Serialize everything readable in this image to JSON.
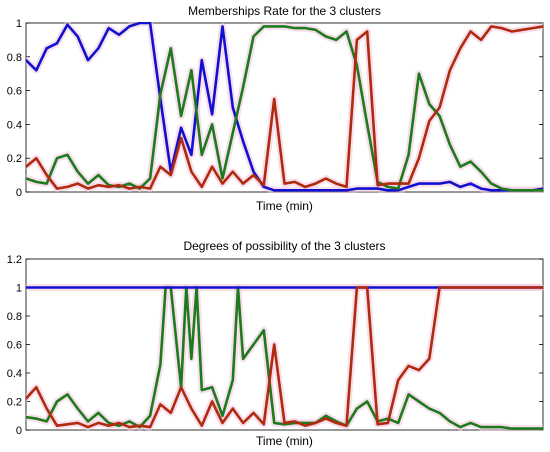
{
  "chart_data": [
    {
      "type": "line",
      "title": "Memberships Rate for the 3 clusters",
      "xlabel": "Time (min)",
      "ylabel": "",
      "ylim": [
        0,
        1
      ],
      "yticks": [
        "0",
        "0.2",
        "0.4",
        "0.6",
        "0.8",
        "1"
      ],
      "xlim": [
        0,
        100
      ],
      "grid": false,
      "legend": "none",
      "series": [
        {
          "color": "#1010d0",
          "x": [
            0,
            2,
            4,
            6,
            8,
            10,
            12,
            14,
            16,
            18,
            20,
            22,
            24,
            26,
            28,
            30,
            32,
            34,
            36,
            38,
            40,
            42,
            44,
            46,
            48,
            50,
            52,
            54,
            56,
            58,
            60,
            62,
            64,
            66,
            68,
            70,
            72,
            74,
            76,
            78,
            80,
            82,
            84,
            86,
            88,
            90,
            92,
            94,
            96,
            98,
            100
          ],
          "y": [
            0.78,
            0.72,
            0.85,
            0.88,
            0.99,
            0.92,
            0.78,
            0.85,
            0.97,
            0.93,
            0.98,
            1.0,
            1.0,
            0.55,
            0.12,
            0.38,
            0.22,
            0.78,
            0.46,
            0.98,
            0.5,
            0.3,
            0.12,
            0.03,
            0.01,
            0.01,
            0.01,
            0.01,
            0.01,
            0.01,
            0.01,
            0.01,
            0.02,
            0.02,
            0.02,
            0.01,
            0.01,
            0.03,
            0.05,
            0.05,
            0.05,
            0.06,
            0.03,
            0.05,
            0.02,
            0.01,
            0.01,
            0.01,
            0.01,
            0.01,
            0.02
          ]
        },
        {
          "color": "#1d7a1d",
          "x": [
            0,
            2,
            4,
            6,
            8,
            10,
            12,
            14,
            16,
            18,
            20,
            22,
            24,
            26,
            28,
            30,
            32,
            34,
            36,
            38,
            40,
            42,
            44,
            46,
            48,
            50,
            52,
            54,
            56,
            58,
            60,
            62,
            64,
            66,
            68,
            70,
            72,
            74,
            76,
            78,
            80,
            82,
            84,
            86,
            88,
            90,
            92,
            94,
            96,
            98,
            100
          ],
          "y": [
            0.08,
            0.06,
            0.05,
            0.2,
            0.22,
            0.12,
            0.05,
            0.1,
            0.04,
            0.03,
            0.05,
            0.02,
            0.08,
            0.58,
            0.85,
            0.45,
            0.72,
            0.22,
            0.4,
            0.08,
            0.35,
            0.62,
            0.92,
            0.98,
            0.98,
            0.98,
            0.97,
            0.97,
            0.96,
            0.92,
            0.9,
            0.95,
            0.75,
            0.4,
            0.06,
            0.03,
            0.02,
            0.22,
            0.7,
            0.52,
            0.45,
            0.28,
            0.15,
            0.18,
            0.12,
            0.05,
            0.02,
            0.01,
            0.01,
            0.01,
            0.01
          ]
        },
        {
          "color": "#b02a0e",
          "x": [
            0,
            2,
            4,
            6,
            8,
            10,
            12,
            14,
            16,
            18,
            20,
            22,
            24,
            26,
            28,
            30,
            32,
            34,
            36,
            38,
            40,
            42,
            44,
            46,
            48,
            50,
            52,
            54,
            56,
            58,
            60,
            62,
            64,
            66,
            68,
            70,
            72,
            74,
            76,
            78,
            80,
            82,
            84,
            86,
            88,
            90,
            92,
            94,
            96,
            98,
            100
          ],
          "y": [
            0.15,
            0.2,
            0.1,
            0.02,
            0.03,
            0.05,
            0.02,
            0.04,
            0.03,
            0.04,
            0.02,
            0.03,
            0.02,
            0.15,
            0.1,
            0.32,
            0.12,
            0.03,
            0.15,
            0.05,
            0.12,
            0.05,
            0.1,
            0.04,
            0.55,
            0.05,
            0.06,
            0.03,
            0.05,
            0.08,
            0.05,
            0.03,
            0.9,
            0.95,
            0.04,
            0.05,
            0.05,
            0.05,
            0.2,
            0.42,
            0.5,
            0.72,
            0.85,
            0.95,
            0.9,
            0.98,
            0.97,
            0.95,
            0.96,
            0.97,
            0.98
          ]
        }
      ]
    },
    {
      "type": "line",
      "title": "Degrees of possibility of the 3 clusters",
      "xlabel": "Time (min)",
      "ylabel": "",
      "ylim": [
        0,
        1.2
      ],
      "yticks": [
        "0",
        "0.2",
        "0.4",
        "0.6",
        "0.8",
        "1",
        "1.2"
      ],
      "xlim": [
        0,
        100
      ],
      "grid": false,
      "legend": "none",
      "series": [
        {
          "color": "#1d7a1d",
          "x": [
            0,
            2,
            4,
            6,
            8,
            10,
            12,
            14,
            16,
            18,
            20,
            22,
            24,
            26,
            27,
            28,
            30,
            31,
            32,
            33,
            34,
            36,
            38,
            40,
            41,
            42,
            44,
            46,
            48,
            50,
            52,
            54,
            56,
            58,
            60,
            62,
            64,
            66,
            68,
            70,
            72,
            74,
            76,
            78,
            80,
            82,
            84,
            86,
            88,
            90,
            92,
            94,
            96,
            98,
            100
          ],
          "y": [
            0.09,
            0.08,
            0.06,
            0.2,
            0.25,
            0.15,
            0.06,
            0.12,
            0.05,
            0.03,
            0.06,
            0.02,
            0.1,
            0.46,
            1.0,
            1.0,
            0.3,
            1.0,
            0.5,
            1.0,
            0.28,
            0.3,
            0.1,
            0.35,
            1.0,
            0.5,
            0.6,
            0.7,
            0.05,
            0.04,
            0.05,
            0.05,
            0.05,
            0.1,
            0.06,
            0.03,
            0.15,
            0.2,
            0.06,
            0.08,
            0.05,
            0.25,
            0.2,
            0.15,
            0.12,
            0.06,
            0.02,
            0.05,
            0.02,
            0.02,
            0.02,
            0.01,
            0.01,
            0.01,
            0.01
          ]
        },
        {
          "color": "#1010d0",
          "x": [
            0,
            2,
            4,
            6,
            8,
            10,
            12,
            14,
            16,
            18,
            20,
            22,
            24,
            26,
            27,
            28,
            30,
            31,
            32,
            33,
            34,
            36,
            38,
            40,
            41,
            42,
            44,
            46,
            48,
            50,
            52,
            54,
            56,
            58,
            60,
            62,
            64,
            66,
            68,
            70,
            72,
            74,
            76,
            78,
            80,
            82,
            84,
            86,
            88,
            90,
            92,
            94,
            96,
            98,
            100
          ],
          "y": [
            1.0,
            1.0,
            1.0,
            1.0,
            1.0,
            1.0,
            1.0,
            1.0,
            1.0,
            1.0,
            1.0,
            1.0,
            1.0,
            1.0,
            1.0,
            1.0,
            1.0,
            1.0,
            1.0,
            1.0,
            1.0,
            1.0,
            1.0,
            1.0,
            1.0,
            1.0,
            1.0,
            1.0,
            1.0,
            1.0,
            1.0,
            1.0,
            1.0,
            1.0,
            1.0,
            1.0,
            1.0,
            1.0,
            1.0,
            1.0,
            1.0,
            1.0,
            1.0,
            1.0,
            1.0,
            1.0,
            1.0,
            1.0,
            1.0,
            1.0,
            1.0,
            1.0,
            1.0,
            1.0,
            1.0
          ]
        },
        {
          "color": "#b02a0e",
          "x": [
            0,
            2,
            4,
            6,
            8,
            10,
            12,
            14,
            16,
            18,
            20,
            22,
            24,
            26,
            28,
            30,
            32,
            34,
            36,
            38,
            40,
            42,
            44,
            46,
            48,
            50,
            52,
            54,
            56,
            58,
            60,
            62,
            64,
            66,
            68,
            70,
            72,
            74,
            76,
            78,
            80,
            82,
            84,
            86,
            88,
            90,
            92,
            94,
            96,
            98,
            100
          ],
          "y": [
            0.22,
            0.3,
            0.15,
            0.03,
            0.04,
            0.05,
            0.02,
            0.05,
            0.03,
            0.05,
            0.02,
            0.03,
            0.02,
            0.18,
            0.12,
            0.3,
            0.15,
            0.03,
            0.2,
            0.05,
            0.15,
            0.05,
            0.12,
            0.04,
            0.6,
            0.05,
            0.06,
            0.03,
            0.05,
            0.08,
            0.05,
            0.03,
            1.0,
            1.0,
            0.04,
            0.05,
            0.35,
            0.45,
            0.42,
            0.5,
            1.0,
            1.0,
            1.0,
            1.0,
            1.0,
            1.0,
            1.0,
            1.0,
            1.0,
            1.0,
            1.0
          ]
        }
      ]
    }
  ]
}
